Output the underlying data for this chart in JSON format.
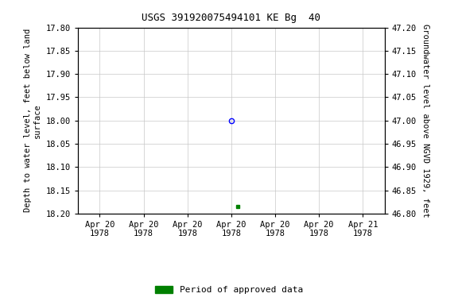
{
  "title": "USGS 391920075494101 KE Bg  40",
  "ylabel_left": "Depth to water level, feet below land\nsurface",
  "ylabel_right": "Groundwater level above NGVD 1929, feet",
  "ylim_left_top": 17.8,
  "ylim_left_bottom": 18.2,
  "ylim_right_top": 47.2,
  "ylim_right_bottom": 46.8,
  "yticks_left": [
    17.8,
    17.85,
    17.9,
    17.95,
    18.0,
    18.05,
    18.1,
    18.15,
    18.2
  ],
  "yticks_right": [
    47.2,
    47.15,
    47.1,
    47.05,
    47.0,
    46.95,
    46.9,
    46.85,
    46.8
  ],
  "blue_point_x": 3.5,
  "blue_point_y": 18.0,
  "green_point_x": 3.65,
  "green_point_y": 18.185,
  "xlim": [
    0,
    7
  ],
  "xtick_positions": [
    0.5,
    1.5,
    2.5,
    3.5,
    4.5,
    5.5,
    6.5
  ],
  "xtick_labels": [
    "Apr 20\n1978",
    "Apr 20\n1978",
    "Apr 20\n1978",
    "Apr 20\n1978",
    "Apr 20\n1978",
    "Apr 20\n1978",
    "Apr 21\n1978"
  ],
  "background_color": "#ffffff",
  "grid_color": "#c8c8c8",
  "legend_label": "Period of approved data",
  "legend_color": "#008000",
  "title_fontsize": 9,
  "axis_fontsize": 7.5,
  "ylabel_fontsize": 7.5
}
